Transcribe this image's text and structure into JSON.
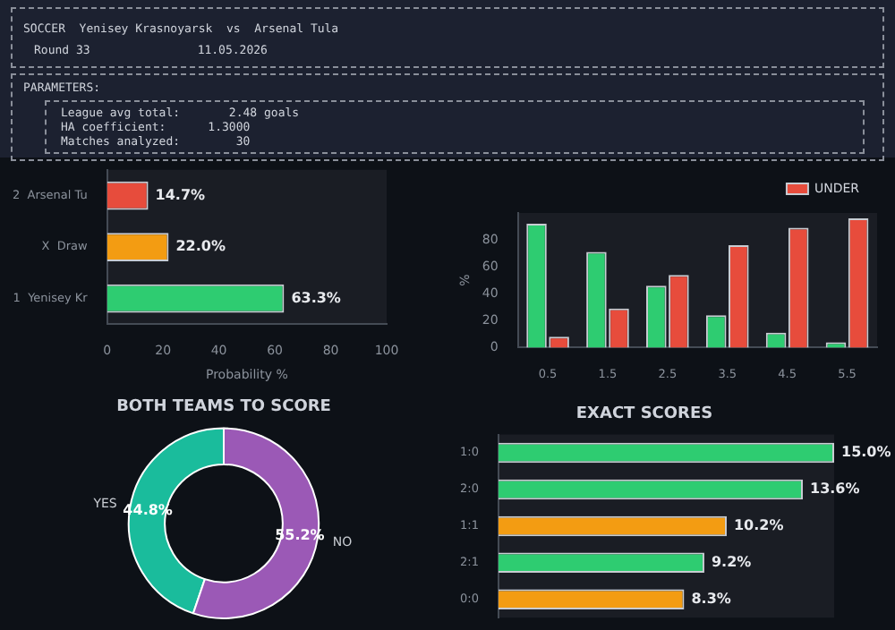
{
  "chart_data": [
    {
      "type": "other",
      "title": "SOCCER  Yenisey Krasnoyarsk  vs  Arsenal Tula",
      "annotations": [
        "Round 33",
        "11.05.2026",
        "PARAMETERS:",
        "League avg total:       2.48 goals",
        "HA coefficient:      1.3000",
        "Matches analyzed:        30"
      ]
    },
    {
      "type": "bar",
      "orientation": "horizontal",
      "categories": [
        "2  Arsenal Tu",
        "X  Draw",
        "1  Yenisey Kr"
      ],
      "values": [
        14.7,
        22.0,
        63.3
      ],
      "colors": [
        "#e74c3c",
        "#f39c12",
        "#2ecc71"
      ],
      "value_labels": [
        "14.7%",
        "22.0%",
        "63.3%"
      ],
      "xlabel": "Probability %",
      "xlim": [
        0,
        100
      ],
      "xticks": [
        0,
        20,
        40,
        60,
        80,
        100
      ],
      "grid": false
    },
    {
      "type": "bar",
      "categories": [
        "0.5",
        "1.5",
        "2.5",
        "3.5",
        "4.5",
        "5.5"
      ],
      "ylabel": "%",
      "ylim": [
        0,
        100
      ],
      "yticks": [
        0,
        20,
        40,
        60,
        80
      ],
      "legend": "top right",
      "grid": false,
      "series": [
        {
          "color": "#2ecc71",
          "values": [
            92,
            71,
            46,
            24,
            11,
            4
          ]
        },
        {
          "name": "UNDER",
          "color": "#e74c3c",
          "values": [
            8,
            29,
            54,
            76,
            89,
            96
          ]
        }
      ]
    },
    {
      "type": "donut",
      "title": "BOTH TEAMS TO SCORE",
      "categories": [
        "YES",
        "NO"
      ],
      "values": [
        44.8,
        55.2
      ],
      "colors": [
        "#1abc9c",
        "#9b59b6"
      ],
      "value_labels": [
        "44.8%",
        "55.2%"
      ]
    },
    {
      "type": "bar",
      "orientation": "horizontal",
      "title": "EXACT SCORES",
      "categories": [
        "1:0",
        "2:0",
        "1:1",
        "2:1",
        "0:0"
      ],
      "values": [
        15.0,
        13.6,
        10.2,
        9.2,
        8.3
      ],
      "colors": [
        "#2ecc71",
        "#2ecc71",
        "#f39c12",
        "#2ecc71",
        "#f39c12"
      ],
      "value_labels": [
        "15.0%",
        "13.6%",
        "10.2%",
        "9.2%",
        "8.3%"
      ],
      "tick_labels": "y",
      "grid": false
    }
  ]
}
